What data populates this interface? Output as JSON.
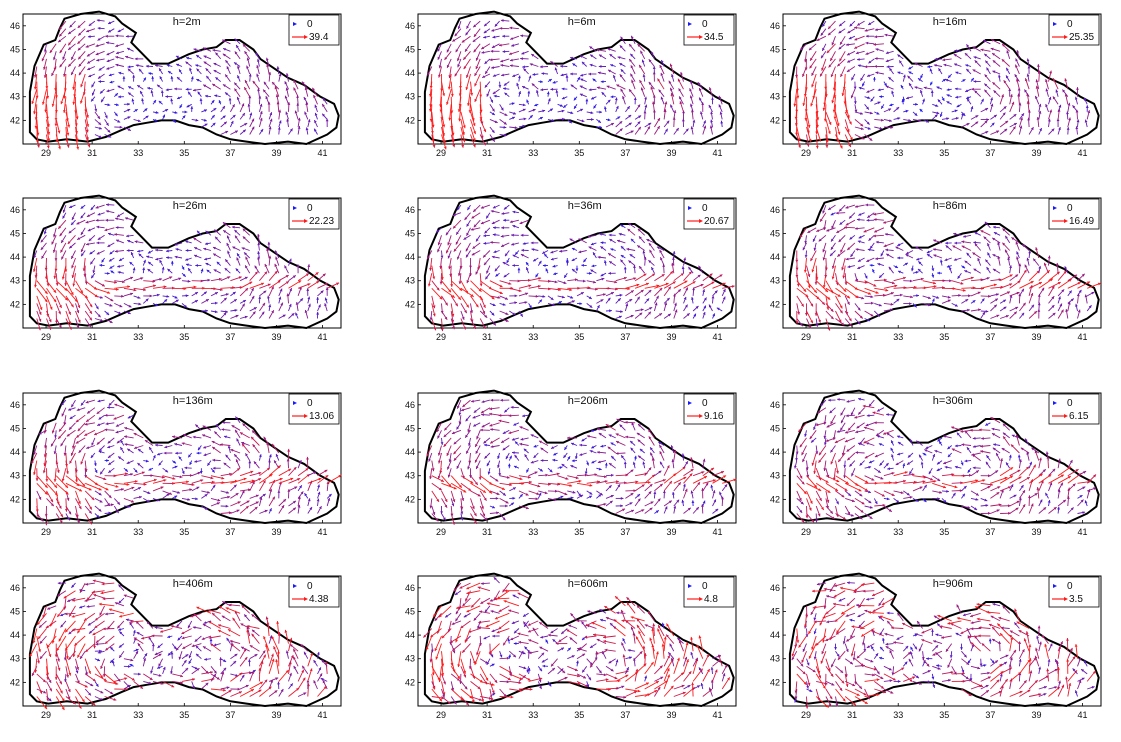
{
  "colors": {
    "low_speed": "#1a1aff",
    "high_speed": "#ff1a1a",
    "coastline": "#000000",
    "frame": "#000000"
  },
  "chart_data": [
    {
      "type": "quiver",
      "title": "h=2m",
      "legend": [
        "0",
        "39.4"
      ],
      "max_speed": 39.4,
      "xticks": [
        "29",
        "31",
        "33",
        "35",
        "37",
        "39",
        "41"
      ],
      "yticks": [
        "42",
        "43",
        "44",
        "45",
        "46"
      ],
      "xlim": [
        28,
        41.8
      ],
      "ylim": [
        41,
        46.5
      ]
    },
    {
      "type": "quiver",
      "title": "h=6m",
      "legend": [
        "0",
        "34.5"
      ],
      "max_speed": 34.5,
      "xticks": [
        "29",
        "31",
        "33",
        "35",
        "37",
        "39",
        "41"
      ],
      "yticks": [
        "42",
        "43",
        "44",
        "45",
        "46"
      ],
      "xlim": [
        28,
        41.8
      ],
      "ylim": [
        41,
        46.5
      ]
    },
    {
      "type": "quiver",
      "title": "h=16m",
      "legend": [
        "0",
        "25.35"
      ],
      "max_speed": 25.35,
      "xticks": [
        "29",
        "31",
        "33",
        "35",
        "37",
        "39",
        "41"
      ],
      "yticks": [
        "42",
        "43",
        "44",
        "45",
        "46"
      ],
      "xlim": [
        28,
        41.8
      ],
      "ylim": [
        41,
        46.5
      ]
    },
    {
      "type": "quiver",
      "title": "h=26m",
      "legend": [
        "0",
        "22.23"
      ],
      "max_speed": 22.23,
      "xticks": [
        "29",
        "31",
        "33",
        "35",
        "37",
        "39",
        "41"
      ],
      "yticks": [
        "42",
        "43",
        "44",
        "45",
        "46"
      ],
      "xlim": [
        28,
        41.8
      ],
      "ylim": [
        41,
        46.5
      ]
    },
    {
      "type": "quiver",
      "title": "h=36m",
      "legend": [
        "0",
        "20.67"
      ],
      "max_speed": 20.67,
      "xticks": [
        "29",
        "31",
        "33",
        "35",
        "37",
        "39",
        "41"
      ],
      "yticks": [
        "42",
        "43",
        "44",
        "45",
        "46"
      ],
      "xlim": [
        28,
        41.8
      ],
      "ylim": [
        41,
        46.5
      ]
    },
    {
      "type": "quiver",
      "title": "h=86m",
      "legend": [
        "0",
        "16.49"
      ],
      "max_speed": 16.49,
      "xticks": [
        "29",
        "31",
        "33",
        "35",
        "37",
        "39",
        "41"
      ],
      "yticks": [
        "42",
        "43",
        "44",
        "45",
        "46"
      ],
      "xlim": [
        28,
        41.8
      ],
      "ylim": [
        41,
        46.5
      ]
    },
    {
      "type": "quiver",
      "title": "h=136m",
      "legend": [
        "0",
        "13.06"
      ],
      "max_speed": 13.06,
      "xticks": [
        "29",
        "31",
        "33",
        "35",
        "37",
        "39",
        "41"
      ],
      "yticks": [
        "42",
        "43",
        "44",
        "45",
        "46"
      ],
      "xlim": [
        28,
        41.8
      ],
      "ylim": [
        41,
        46.5
      ]
    },
    {
      "type": "quiver",
      "title": "h=206m",
      "legend": [
        "0",
        "9.16"
      ],
      "max_speed": 9.16,
      "xticks": [
        "29",
        "31",
        "33",
        "35",
        "37",
        "39",
        "41"
      ],
      "yticks": [
        "42",
        "43",
        "44",
        "45",
        "46"
      ],
      "xlim": [
        28,
        41.8
      ],
      "ylim": [
        41,
        46.5
      ]
    },
    {
      "type": "quiver",
      "title": "h=306m",
      "legend": [
        "0",
        "6.15"
      ],
      "max_speed": 6.15,
      "xticks": [
        "29",
        "31",
        "33",
        "35",
        "37",
        "39",
        "41"
      ],
      "yticks": [
        "42",
        "43",
        "44",
        "45",
        "46"
      ],
      "xlim": [
        28,
        41.8
      ],
      "ylim": [
        41,
        46.5
      ]
    },
    {
      "type": "quiver",
      "title": "h=406m",
      "legend": [
        "0",
        "4.38"
      ],
      "max_speed": 4.38,
      "xticks": [
        "29",
        "31",
        "33",
        "35",
        "37",
        "39",
        "41"
      ],
      "yticks": [
        "42",
        "43",
        "44",
        "45",
        "46"
      ],
      "xlim": [
        28,
        41.8
      ],
      "ylim": [
        41,
        46.5
      ]
    },
    {
      "type": "quiver",
      "title": "h=606m",
      "legend": [
        "0",
        "4.8"
      ],
      "max_speed": 4.8,
      "xticks": [
        "29",
        "31",
        "33",
        "35",
        "37",
        "39",
        "41"
      ],
      "yticks": [
        "42",
        "43",
        "44",
        "45",
        "46"
      ],
      "xlim": [
        28,
        41.8
      ],
      "ylim": [
        41,
        46.5
      ]
    },
    {
      "type": "quiver",
      "title": "h=906m",
      "legend": [
        "0",
        "3.5"
      ],
      "max_speed": 3.5,
      "xticks": [
        "29",
        "31",
        "33",
        "35",
        "37",
        "39",
        "41"
      ],
      "yticks": [
        "42",
        "43",
        "44",
        "45",
        "46"
      ],
      "xlim": [
        28,
        41.8
      ],
      "ylim": [
        41,
        46.5
      ]
    }
  ]
}
